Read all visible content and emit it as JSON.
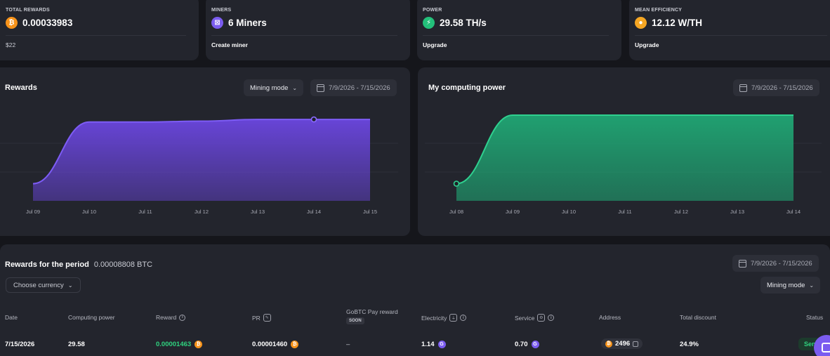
{
  "stats": [
    {
      "label": "TOTAL REWARDS",
      "value": "0.00033983",
      "sub": "$22",
      "icon": "bitcoin-icon",
      "color": "#f7931a"
    },
    {
      "label": "MINERS",
      "value": "6 Miners",
      "sub": "Create miner",
      "icon": "miner-icon",
      "color": "#7b5cf0"
    },
    {
      "label": "POWER",
      "value": "29.58 TH/s",
      "sub": "Upgrade",
      "icon": "lightning-icon",
      "color": "#23c07a"
    },
    {
      "label": "MEAN EFFICIENCY",
      "value": "12.12 W/TH",
      "sub": "Upgrade",
      "icon": "bulb-icon",
      "color": "#f5a623"
    }
  ],
  "rewards_chart": {
    "title": "Rewards",
    "mode_label": "Mining mode",
    "date_range": "7/9/2026 - 7/15/2026"
  },
  "power_chart": {
    "title": "My computing power",
    "date_range": "7/9/2026 - 7/15/2026"
  },
  "chart_data": [
    {
      "type": "area",
      "x": [
        "Jul 09",
        "Jul 10",
        "Jul 11",
        "Jul 12",
        "Jul 13",
        "Jul 14",
        "Jul 15"
      ],
      "values": [
        0.2,
        0.92,
        0.92,
        0.93,
        0.95,
        0.95,
        0.95
      ],
      "color": "#6b46e0",
      "grid": true
    },
    {
      "type": "area",
      "x": [
        "Jul 08",
        "Jul 09",
        "Jul 10",
        "Jul 11",
        "Jul 12",
        "Jul 13",
        "Jul 14"
      ],
      "values": [
        0.2,
        1,
        1,
        1,
        1,
        1,
        1
      ],
      "color": "#1fae78",
      "grid": true
    }
  ],
  "period": {
    "title": "Rewards for the period",
    "value": "0.00008808 BTC",
    "date_range": "7/9/2026 - 7/15/2026",
    "currency_label": "Choose currency",
    "mode_label": "Mining mode"
  },
  "table": {
    "headers": {
      "date": "Date",
      "power": "Computing power",
      "reward": "Reward",
      "pr": "PR",
      "gobtc": "GoBTC Pay reward",
      "soon": "SOON",
      "electricity": "Electricity",
      "service": "Service",
      "address": "Address",
      "discount": "Total discount",
      "status": "Status"
    },
    "row": {
      "date": "7/15/2026",
      "power": "29.58",
      "reward": "0.00001463",
      "pr": "0.00001460",
      "gobtc": "–",
      "electricity": "1.14",
      "service": "0.70",
      "address": "2496",
      "discount": "24.9%",
      "status": "Sen"
    }
  }
}
